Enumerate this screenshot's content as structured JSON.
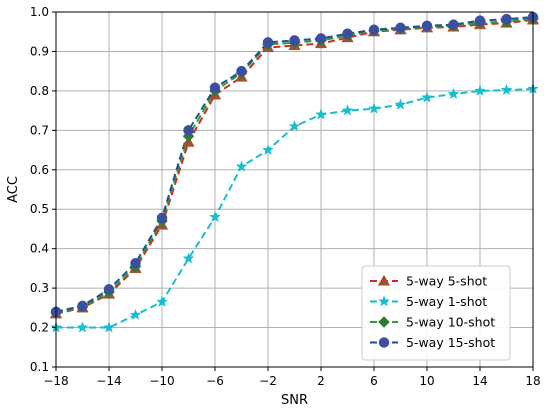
{
  "chart_data": {
    "type": "line",
    "title": "",
    "xlabel": "SNR",
    "ylabel": "ACC",
    "xlim": [
      -18,
      18
    ],
    "ylim": [
      0.1,
      1.0
    ],
    "xticks": [
      -18,
      -14,
      -10,
      -6,
      -2,
      2,
      6,
      10,
      14,
      18
    ],
    "yticks": [
      0.1,
      0.2,
      0.3,
      0.4,
      0.5,
      0.6,
      0.7,
      0.8,
      0.9,
      1.0
    ],
    "grid": true,
    "legend_position": "lower-right",
    "x": [
      -18,
      -16,
      -14,
      -12,
      -10,
      -8,
      -6,
      -4,
      -2,
      0,
      2,
      4,
      6,
      8,
      10,
      12,
      14,
      16,
      18
    ],
    "series": [
      {
        "name": "5-way 5-shot",
        "color": "#d62728",
        "marker": "triangle",
        "marker_color": "#a0522d",
        "values": [
          0.235,
          0.25,
          0.285,
          0.35,
          0.46,
          0.67,
          0.79,
          0.835,
          0.91,
          0.915,
          0.92,
          0.935,
          0.95,
          0.955,
          0.96,
          0.962,
          0.968,
          0.972,
          0.98
        ]
      },
      {
        "name": "5-way 1-shot",
        "color": "#17becf",
        "marker": "star",
        "marker_color": "#17becf",
        "values": [
          0.2,
          0.2,
          0.2,
          0.232,
          0.265,
          0.375,
          0.48,
          0.608,
          0.65,
          0.71,
          0.74,
          0.75,
          0.755,
          0.765,
          0.783,
          0.792,
          0.8,
          0.802,
          0.805
        ]
      },
      {
        "name": "5-way 10-shot",
        "color": "#2ca02c",
        "marker": "diamond",
        "marker_color": "#2e7d32",
        "values": [
          0.237,
          0.252,
          0.29,
          0.355,
          0.47,
          0.685,
          0.8,
          0.845,
          0.918,
          0.922,
          0.928,
          0.94,
          0.952,
          0.957,
          0.962,
          0.965,
          0.972,
          0.976,
          0.983
        ]
      },
      {
        "name": "5-way 15-shot",
        "color": "#1f4e9a",
        "marker": "circle",
        "marker_color": "#3b4fa0",
        "values": [
          0.24,
          0.255,
          0.297,
          0.363,
          0.478,
          0.7,
          0.808,
          0.85,
          0.923,
          0.928,
          0.933,
          0.945,
          0.955,
          0.96,
          0.965,
          0.968,
          0.978,
          0.982,
          0.987
        ]
      }
    ]
  }
}
